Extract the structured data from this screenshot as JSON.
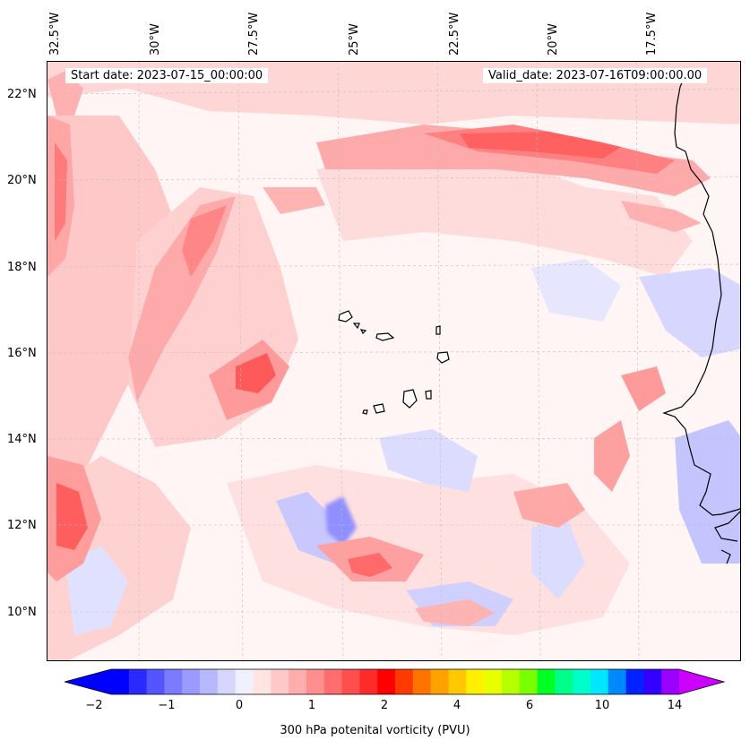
{
  "map": {
    "start_date": "Start date: 2023-07-15_00:00:00",
    "valid_date": "Valid_date: 2023-07-16T09:00:00.00",
    "lon_labels": [
      "32.5°W",
      "30°W",
      "27.5°W",
      "25°W",
      "22.5°W",
      "20°W",
      "17.5°W"
    ],
    "lat_labels": [
      "22°N",
      "20°N",
      "18°N",
      "16°N",
      "14°N",
      "12°N",
      "10°N"
    ],
    "variable": "300 hPa potential vorticity",
    "region": "Eastern tropical Atlantic, Cape Verde islands, West African coast"
  },
  "colorbar": {
    "title": "300 hPa potenital vorticity (PVU)",
    "tick_labels": [
      "−2",
      "−1",
      "0",
      "1",
      "2",
      "4",
      "6",
      "10",
      "14"
    ],
    "colors": [
      "#0000ff",
      "#2a2aff",
      "#5555ff",
      "#7b7bff",
      "#9a9aff",
      "#b8b8ff",
      "#d6d6ff",
      "#f0f0ff",
      "#ffe4e4",
      "#ffc8c8",
      "#ffadad",
      "#ff8e8e",
      "#ff6e6e",
      "#ff4e4e",
      "#ff2a2a",
      "#ff0000",
      "#ff3a00",
      "#ff7300",
      "#ffa200",
      "#ffc800",
      "#ffef00",
      "#e8ff00",
      "#b6ff00",
      "#7aff00",
      "#00ff22",
      "#00ff88",
      "#00ffc8",
      "#00e6ff",
      "#0088ff",
      "#0022ff",
      "#3300ff",
      "#9900ff"
    ],
    "extend_left_color": "#0000ff",
    "extend_right_color": "#cc00ff"
  }
}
